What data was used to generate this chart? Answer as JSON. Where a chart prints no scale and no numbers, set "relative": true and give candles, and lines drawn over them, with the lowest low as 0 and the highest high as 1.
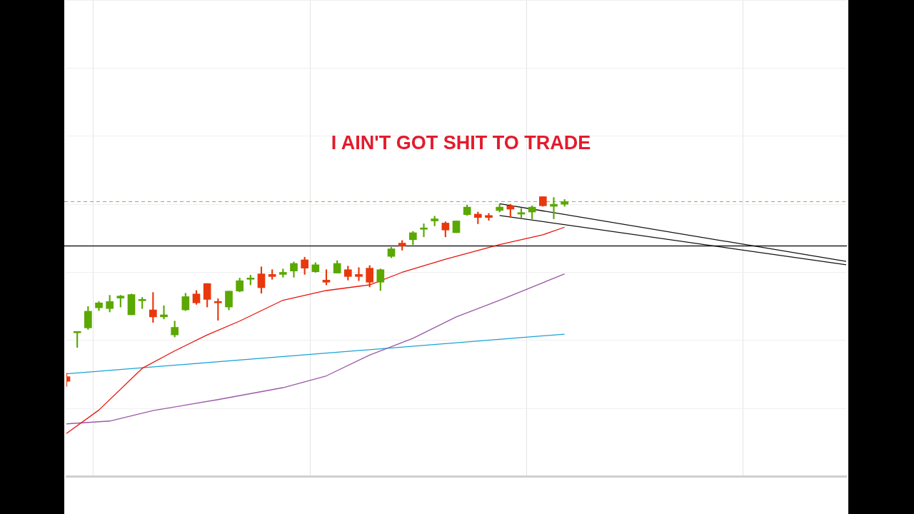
{
  "chart_data": {
    "type": "candlestick",
    "title": "I AIN'T GOT SHIT TO TRADE",
    "relative": true,
    "legend": false,
    "grid": true,
    "categories": [
      null,
      null,
      null,
      null,
      null,
      null,
      null,
      null,
      null,
      null,
      null,
      null,
      null,
      null,
      null,
      null,
      null,
      null,
      null,
      null,
      null,
      null,
      null,
      null,
      null,
      null,
      null,
      null,
      null,
      null,
      null,
      null,
      null,
      null,
      null,
      null,
      null,
      null,
      null,
      null,
      null,
      null,
      null,
      null,
      null,
      null,
      null,
      null,
      null,
      null,
      null,
      null,
      null,
      null,
      null,
      null,
      null,
      null,
      null,
      null,
      null,
      null,
      null,
      null,
      null,
      null,
      null,
      null,
      null,
      null,
      null,
      null,
      null
    ],
    "ohlc": [
      [
        0.051,
        0.07,
        0,
        0.026
      ],
      [
        0.282,
        0.289,
        0.205,
        0.289
      ],
      [
        0.308,
        0.421,
        0.3,
        0.396
      ],
      [
        0.414,
        0.447,
        0.399,
        0.44
      ],
      [
        0.41,
        0.48,
        0.392,
        0.447
      ],
      [
        0.465,
        0.48,
        0.418,
        0.476
      ],
      [
        0.377,
        0.487,
        0.377,
        0.484
      ],
      [
        0.451,
        0.469,
        0.41,
        0.458
      ],
      [
        0.403,
        0.495,
        0.337,
        0.366
      ],
      [
        0.366,
        0.425,
        0.355,
        0.377
      ],
      [
        0.271,
        0.344,
        0.26,
        0.311
      ],
      [
        0.403,
        0.491,
        0.399,
        0.473
      ],
      [
        0.487,
        0.505,
        0.432,
        0.44
      ],
      [
        0.542,
        0.542,
        0.418,
        0.458
      ],
      [
        0.447,
        0.462,
        0.348,
        0.44
      ],
      [
        0.418,
        0.502,
        0.403,
        0.502
      ],
      [
        0.502,
        0.571,
        0.498,
        0.557
      ],
      [
        0.564,
        0.586,
        0.535,
        0.571
      ],
      [
        0.593,
        0.63,
        0.491,
        0.52
      ],
      [
        0.59,
        0.615,
        0.564,
        0.579
      ],
      [
        0.59,
        0.619,
        0.575,
        0.601
      ],
      [
        0.608,
        0.656,
        0.575,
        0.648
      ],
      [
        0.667,
        0.681,
        0.59,
        0.623
      ],
      [
        0.604,
        0.652,
        0.601,
        0.641
      ],
      [
        0.56,
        0.615,
        0.535,
        0.549
      ],
      [
        0.597,
        0.663,
        0.597,
        0.648
      ],
      [
        0.615,
        0.634,
        0.56,
        0.579
      ],
      [
        0.59,
        0.626,
        0.557,
        0.579
      ],
      [
        0.623,
        0.637,
        0.524,
        0.549
      ],
      [
        0.549,
        0.619,
        0.505,
        0.615
      ],
      [
        0.685,
        0.733,
        0.678,
        0.725
      ],
      [
        0.755,
        0.769,
        0.718,
        0.74
      ],
      [
        0.773,
        0.817,
        0.747,
        0.81
      ],
      [
        0.828,
        0.857,
        0.788,
        0.835
      ],
      [
        0.872,
        0.897,
        0.846,
        0.883
      ],
      [
        0.861,
        0.868,
        0.788,
        0.824
      ],
      [
        0.81,
        0.872,
        0.81,
        0.872
      ],
      [
        0.905,
        0.956,
        0.901,
        0.945
      ],
      [
        0.908,
        0.919,
        0.857,
        0.89
      ],
      [
        0.901,
        0.912,
        0.875,
        0.89
      ],
      [
        0.927,
        0.96,
        0.919,
        0.945
      ],
      [
        0.952,
        0.96,
        0.89,
        0.934
      ],
      [
        0.908,
        0.938,
        0.89,
        0.916
      ],
      [
        0.919,
        0.952,
        0.883,
        0.945
      ],
      [
        1,
        1,
        0.949,
        0.952
      ],
      [
        0.949,
        0.996,
        0.883,
        0.96
      ],
      [
        0.96,
        0.985,
        0.949,
        0.974
      ],
      null,
      null,
      null,
      null,
      null,
      null,
      null,
      null,
      null,
      null,
      null,
      null,
      null,
      null,
      null,
      null,
      null,
      null,
      null,
      null,
      null,
      null,
      null,
      null,
      null,
      null
    ],
    "colors": [
      "#e8380d",
      "#5aa800",
      "#5aa800",
      "#5aa800",
      "#5aa800",
      "#5aa800",
      "#5aa800",
      "#5aa800",
      "#e8380d",
      "#5aa800",
      "#5aa800",
      "#5aa800",
      "#e8380d",
      "#e8380d",
      "#e8380d",
      "#5aa800",
      "#5aa800",
      "#5aa800",
      "#e8380d",
      "#e8380d",
      "#5aa800",
      "#5aa800",
      "#e8380d",
      "#5aa800",
      "#e8380d",
      "#5aa800",
      "#e8380d",
      "#e8380d",
      "#e8380d",
      "#5aa800",
      "#5aa800",
      "#e8380d",
      "#5aa800",
      "#5aa800",
      "#5aa800",
      "#e8380d",
      "#5aa800",
      "#5aa800",
      "#e8380d",
      "#e8380d",
      "#5aa800",
      "#e8380d",
      "#5aa800",
      "#5aa800",
      "#e8380d",
      "#5aa800",
      "#5aa800",
      null,
      null,
      null,
      null,
      null,
      null,
      null,
      null,
      null,
      null,
      null,
      null,
      null,
      null,
      null,
      null,
      null,
      null,
      null,
      null,
      null,
      null,
      null,
      null,
      null,
      null
    ],
    "series": [
      {
        "type": "line",
        "color": "#e8130d",
        "values": [
          -0.249,
          null,
          null,
          -0.125,
          null,
          null,
          null,
          0.095,
          null,
          null,
          0.187,
          null,
          null,
          0.271,
          null,
          null,
          0.344,
          null,
          null,
          null,
          0.454,
          null,
          null,
          null,
          0.505,
          null,
          null,
          null,
          0.535,
          null,
          null,
          0.601,
          null,
          null,
          null,
          0.67,
          null,
          null,
          null,
          null,
          0.747,
          null,
          null,
          null,
          0.799,
          null,
          0.839,
          null,
          null,
          null,
          null,
          null,
          null,
          null,
          null,
          null,
          null,
          null,
          null,
          null,
          null,
          null,
          null,
          null,
          null,
          null,
          null,
          null,
          null,
          null,
          null,
          null,
          null
        ]
      },
      {
        "type": "line",
        "color": "#9b59a8",
        "values": [
          -0.198,
          null,
          null,
          null,
          -0.183,
          null,
          null,
          null,
          -0.128,
          null,
          null,
          null,
          null,
          null,
          -0.07,
          null,
          null,
          null,
          null,
          null,
          -0.007,
          null,
          null,
          null,
          0.055,
          null,
          null,
          null,
          0.165,
          null,
          null,
          null,
          0.253,
          null,
          null,
          null,
          0.366,
          null,
          null,
          null,
          0.454,
          null,
          null,
          null,
          null,
          null,
          0.593,
          null,
          null,
          null,
          null,
          null,
          null,
          null,
          null,
          null,
          null,
          null,
          null,
          null,
          null,
          null,
          null,
          null,
          null,
          null,
          null,
          null,
          null,
          null,
          null,
          null,
          null
        ]
      },
      {
        "type": "line",
        "color": "#1aa3d6",
        "values": [
          0.066,
          null,
          null,
          null,
          null,
          null,
          null,
          null,
          null,
          null,
          null,
          null,
          null,
          null,
          null,
          null,
          null,
          null,
          null,
          null,
          null,
          null,
          null,
          null,
          null,
          null,
          null,
          null,
          null,
          null,
          null,
          null,
          null,
          null,
          null,
          null,
          null,
          null,
          null,
          null,
          null,
          null,
          null,
          null,
          null,
          null,
          0.275,
          null,
          null,
          null,
          null,
          null,
          null,
          null,
          null,
          null,
          null,
          null,
          null,
          null,
          null,
          null,
          null,
          null,
          null,
          null,
          null,
          null,
          null,
          null,
          null,
          null,
          null
        ]
      },
      {
        "type": "line",
        "color": "#111111",
        "values": [
          null,
          null,
          null,
          null,
          null,
          null,
          null,
          null,
          null,
          null,
          null,
          null,
          null,
          null,
          null,
          null,
          null,
          null,
          null,
          null,
          null,
          null,
          null,
          null,
          null,
          null,
          null,
          null,
          null,
          null,
          null,
          null,
          null,
          null,
          null,
          null,
          null,
          null,
          null,
          null,
          0.963,
          null,
          null,
          null,
          null,
          null,
          null,
          null,
          null,
          null,
          null,
          null,
          null,
          null,
          null,
          null,
          null,
          null,
          null,
          null,
          null,
          null,
          null,
          null,
          null,
          null,
          null,
          null,
          null,
          null,
          null,
          null,
          0.659
        ]
      },
      {
        "type": "line",
        "color": "#111111",
        "values": [
          null,
          null,
          null,
          null,
          null,
          null,
          null,
          null,
          null,
          null,
          null,
          null,
          null,
          null,
          null,
          null,
          null,
          null,
          null,
          null,
          null,
          null,
          null,
          null,
          null,
          null,
          null,
          null,
          null,
          null,
          null,
          null,
          null,
          null,
          null,
          null,
          null,
          null,
          null,
          null,
          0.901,
          null,
          null,
          null,
          null,
          null,
          null,
          null,
          null,
          null,
          null,
          null,
          null,
          null,
          null,
          null,
          null,
          null,
          null,
          null,
          null,
          null,
          null,
          null,
          null,
          null,
          null,
          null,
          null,
          null,
          null,
          null,
          0.641
        ]
      }
    ],
    "ref_lines": [
      {
        "axis": "y",
        "value": 0.74,
        "color": "#222222",
        "line_style": "solid"
      },
      {
        "axis": "y",
        "value": 0.974,
        "color": "#8ab04a",
        "line_style": "dashed"
      }
    ]
  }
}
